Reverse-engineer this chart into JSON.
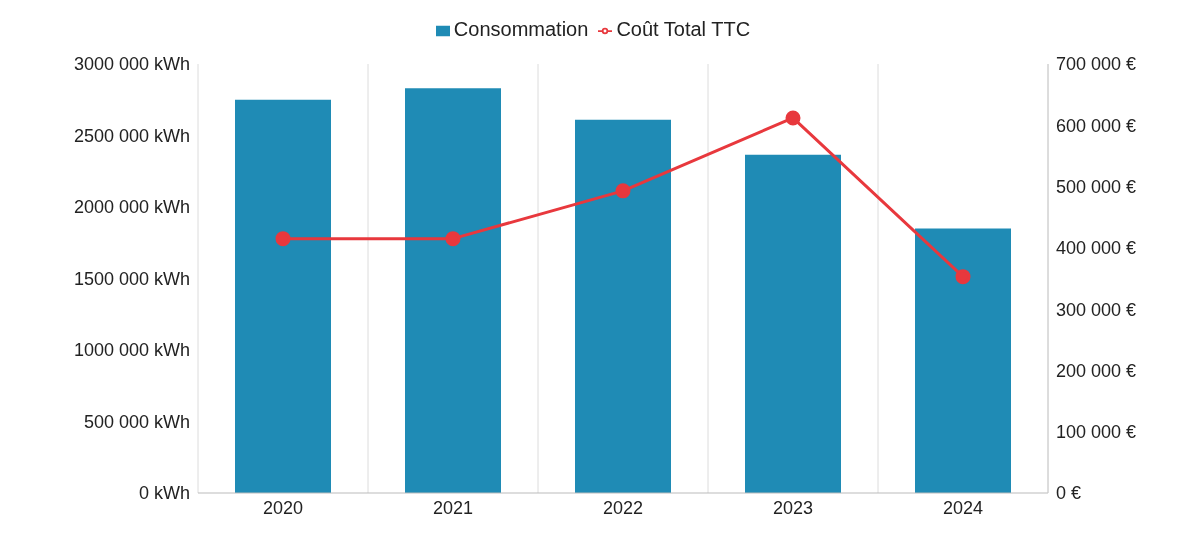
{
  "chart_data": {
    "type": "bar",
    "categories": [
      "2020",
      "2021",
      "2022",
      "2023",
      "2024"
    ],
    "series": [
      {
        "name": "Consommation",
        "color": "#1f8bb5",
        "values": [
          2750000,
          2830000,
          2610000,
          2365000,
          1850000
        ]
      },
      {
        "name": "Coût  Total TTC",
        "type": "line",
        "axis": "y2",
        "color": "#e8383d",
        "values": [
          415000,
          415000,
          493000,
          612000,
          353000
        ]
      }
    ],
    "ylim": [
      0,
      3000000
    ],
    "yticks": [
      {
        "value": 0,
        "label": "0 kWh"
      },
      {
        "value": 500000,
        "label": "500 000 kWh"
      },
      {
        "value": 1000000,
        "label": "1000 000 kWh"
      },
      {
        "value": 1500000,
        "label": "1500 000 kWh"
      },
      {
        "value": 2000000,
        "label": "2000 000 kWh"
      },
      {
        "value": 2500000,
        "label": "2500 000 kWh"
      },
      {
        "value": 3000000,
        "label": "3000 000 kWh"
      }
    ],
    "y2lim": [
      0,
      700000
    ],
    "y2ticks": [
      {
        "value": 0,
        "label": "0 €"
      },
      {
        "value": 100000,
        "label": "100 000 €"
      },
      {
        "value": 200000,
        "label": "200 000 €"
      },
      {
        "value": 300000,
        "label": "300 000 €"
      },
      {
        "value": 400000,
        "label": "400 000 €"
      },
      {
        "value": 500000,
        "label": "500 000 €"
      },
      {
        "value": 600000,
        "label": "600 000 €"
      },
      {
        "value": 700000,
        "label": "700 000 €"
      }
    ],
    "grid": "x",
    "legend": "top",
    "marker": "circle",
    "line_style": "solid"
  }
}
